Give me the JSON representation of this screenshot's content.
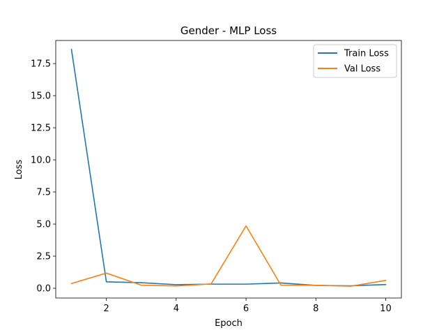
{
  "chart_data": {
    "type": "line",
    "title": "Gender - MLP Loss",
    "xlabel": "Epoch",
    "ylabel": "Loss",
    "x": [
      1,
      2,
      3,
      4,
      5,
      6,
      7,
      8,
      9,
      10
    ],
    "series": [
      {
        "name": "Train Loss",
        "color": "#1f77b4",
        "values": [
          18.6,
          0.5,
          0.43,
          0.28,
          0.32,
          0.32,
          0.41,
          0.22,
          0.19,
          0.29
        ]
      },
      {
        "name": "Val Loss",
        "color": "#ff7f0e",
        "values": [
          0.37,
          1.18,
          0.24,
          0.18,
          0.34,
          4.86,
          0.24,
          0.23,
          0.16,
          0.61
        ]
      }
    ],
    "xlim": [
      0.55,
      10.45
    ],
    "ylim": [
      -0.76,
      19.3
    ],
    "xticks": [
      2,
      4,
      6,
      8,
      10
    ],
    "xtick_labels": [
      "2",
      "4",
      "6",
      "8",
      "10"
    ],
    "yticks": [
      0,
      2.5,
      5,
      7.5,
      10,
      12.5,
      15,
      17.5
    ],
    "ytick_labels": [
      "0.0",
      "2.5",
      "5.0",
      "7.5",
      "10.0",
      "12.5",
      "15.0",
      "17.5"
    ],
    "grid": false,
    "legend_position": "upper right"
  }
}
